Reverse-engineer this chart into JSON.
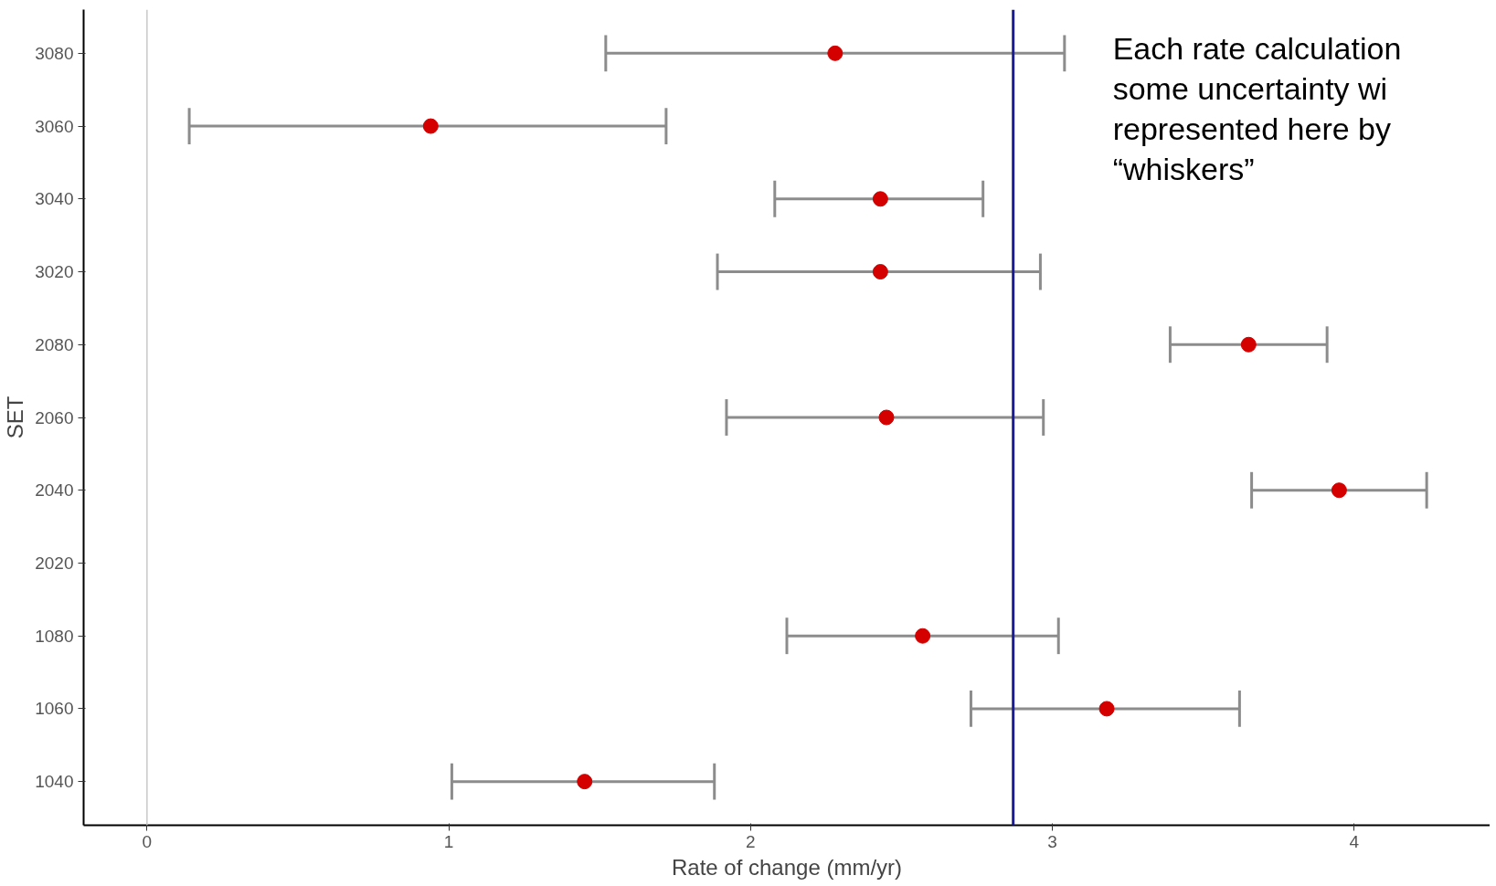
{
  "chart_data": {
    "type": "scatter",
    "orientation": "horizontal",
    "xlabel": "Rate of change (mm/yr)",
    "ylabel": "SET",
    "categories": [
      "3080",
      "3060",
      "3040",
      "3020",
      "2080",
      "2060",
      "2040",
      "2020",
      "1080",
      "1060",
      "1040"
    ],
    "values": [
      2.28,
      0.94,
      2.43,
      2.43,
      3.65,
      2.45,
      3.95,
      null,
      2.57,
      3.18,
      1.45
    ],
    "errors": [
      [
        1.52,
        3.04
      ],
      [
        0.14,
        1.72
      ],
      [
        2.08,
        2.77
      ],
      [
        1.89,
        2.96
      ],
      [
        3.39,
        3.91
      ],
      [
        1.92,
        2.97
      ],
      [
        3.66,
        4.24
      ],
      null,
      [
        2.12,
        3.02
      ],
      [
        2.73,
        3.62
      ],
      [
        1.01,
        1.88
      ]
    ],
    "color": "#d40000",
    "marker": "circle",
    "grid": false,
    "xlim": [
      -0.21,
      4.45
    ],
    "xticks": [
      0,
      1,
      2,
      3,
      4
    ],
    "ref_lines": [
      {
        "axis": "x",
        "value": 0,
        "color": "#c8c8c8"
      },
      {
        "axis": "x",
        "value": 2.87,
        "color": "#1a1a9c"
      }
    ],
    "annotations": [
      "Each rate calculation\nsome uncertainty wi\nrepresented here by\n“whiskers”"
    ]
  }
}
